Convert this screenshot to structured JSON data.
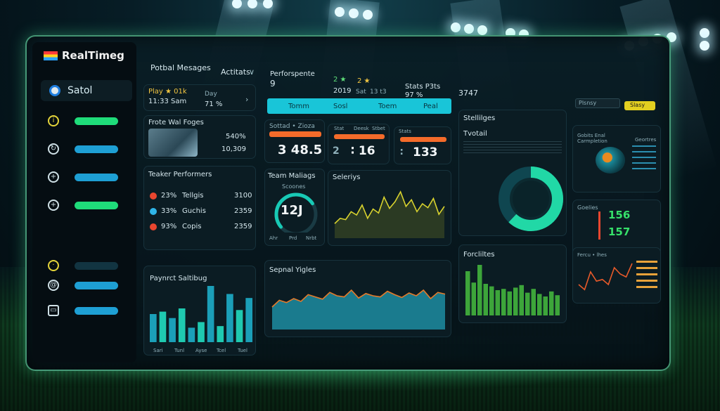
{
  "app": {
    "title": "RealTimeg",
    "user": "Satol"
  },
  "header": {
    "nav1": "Potbal Mesages",
    "nav2": "Actitats",
    "nav2_chevron": "∨",
    "perf_label": "Perforspente",
    "perf_value": "9",
    "stat1_top": "2 ★",
    "stat1_bottom": "2019",
    "stat2_top": "2 ★",
    "stat2_mid": "Sat",
    "stat2_bottom": "13 t3",
    "stat3_top": "Stats P3ts",
    "stat3_bottom": "97 %",
    "stat4": "3747"
  },
  "play_card": {
    "line1": "Play ★ 01k",
    "line2": "11:33 Sam",
    "side1": "Day",
    "side2": "71 %",
    "chevron": "›"
  },
  "match_card": {
    "title": "Frote Wal Foges",
    "v1": "540%",
    "v2": "10,309"
  },
  "performers": {
    "title": "Teaker Performers",
    "rows": [
      {
        "pct": "23%",
        "name": "Tellgis",
        "val": "3100",
        "color": "#e8462f"
      },
      {
        "pct": "33%",
        "name": "Guchis",
        "val": "2359",
        "color": "#2fb5e8"
      },
      {
        "pct": "93%",
        "name": "Copis",
        "val": "2359",
        "color": "#e8462f"
      }
    ]
  },
  "tabs": [
    "Tomm",
    "Sosl",
    "Toem",
    "Peal"
  ],
  "kpi1": {
    "head": "Sottad • Zioza",
    "value": "3 48.5"
  },
  "kpi2": {
    "h1": "Stat",
    "h2": "Deesk",
    "h3": "Stbet",
    "value": "∶ 16",
    "sub": "2"
  },
  "kpi3": {
    "head": "Stats",
    "value": "133",
    "prefix": "∶"
  },
  "team": {
    "title": "Team Maliags",
    "sub": "Scoones",
    "value": "12J",
    "gauge_pct": 0.72,
    "legend": [
      "Ahr",
      "Prd",
      "Nrbt"
    ]
  },
  "stats_line": {
    "title": "Seleriys",
    "chart_data": {
      "type": "line",
      "values": [
        22,
        30,
        28,
        40,
        35,
        50,
        30,
        44,
        38,
        62,
        45,
        55,
        70,
        48,
        58,
        40,
        52,
        46,
        60,
        36,
        48
      ]
    }
  },
  "settings": {
    "title": "Stellilges",
    "sub": "Tvotail",
    "donut_pct": 0.62
  },
  "map_card": {
    "title1": "Gobits Enal",
    "title2": "Carmpletion",
    "right_title": "Geortres"
  },
  "goals": {
    "title": "Goelies",
    "v1": "156",
    "v2": "157"
  },
  "payment": {
    "title": "Paynrct Saltibug",
    "labels": [
      "Sari",
      "Tunl",
      "Ayse",
      "Tcel",
      "Tuel"
    ],
    "chart_data": {
      "type": "bar",
      "values": [
        35,
        38,
        30,
        42,
        18,
        25,
        70,
        20,
        60,
        40,
        55
      ]
    }
  },
  "signal": {
    "title": "Sepnal Yigles",
    "chart_data": {
      "type": "area",
      "values": [
        40,
        52,
        48,
        55,
        50,
        62,
        58,
        54,
        66,
        60,
        58,
        70,
        56,
        64,
        60,
        58,
        68,
        62,
        57,
        65,
        60,
        70,
        55,
        66,
        63
      ]
    }
  },
  "forecast": {
    "title": "Forcliltes",
    "chart_data": {
      "type": "bar",
      "values": [
        70,
        52,
        80,
        50,
        46,
        40,
        42,
        38,
        44,
        48,
        36,
        42,
        34,
        30,
        38,
        32
      ]
    }
  },
  "rev": {
    "title": "Fercu • lhes",
    "chart_data": {
      "type": "line",
      "values": [
        30,
        18,
        60,
        38,
        42,
        30,
        70,
        55,
        48,
        80
      ]
    }
  },
  "topbar": {
    "select": "Plsnsy",
    "btn": "Slasy"
  }
}
